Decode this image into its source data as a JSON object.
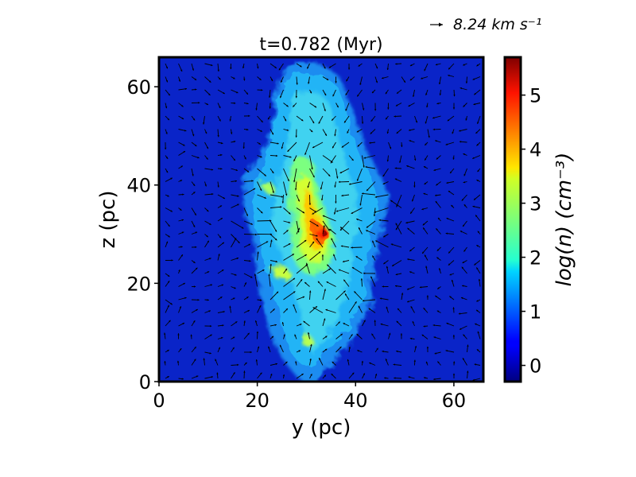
{
  "chart_data": {
    "type": "heatmap",
    "title": "t=0.782 (Myr)",
    "xlabel": "y (pc)",
    "ylabel": "z (pc)",
    "xlim": [
      0,
      66
    ],
    "ylim": [
      0,
      66
    ],
    "xticks": [
      0,
      20,
      40,
      60
    ],
    "yticks": [
      0,
      20,
      40,
      60
    ],
    "xtick_labels": [
      "0",
      "20",
      "40",
      "60"
    ],
    "ytick_labels": [
      "0",
      "20",
      "40",
      "60"
    ],
    "colormap": "jet",
    "colorbar": {
      "label": "log(n) (cm^-3)",
      "label_display": "log(n) (cm⁻³)",
      "range": [
        -0.3,
        5.7
      ],
      "ticks": [
        0,
        1,
        2,
        3,
        4,
        5
      ],
      "tick_labels": [
        "0",
        "1",
        "2",
        "3",
        "4",
        "5"
      ]
    },
    "quiver": {
      "description": "velocity field vectors overlaid on density map",
      "reference_label": "8.24 km s^-1",
      "reference_display": "8.24 km s⁻¹"
    },
    "features": {
      "cloud_center_pc": [
        33,
        31
      ],
      "peak_logn": 5.5,
      "background_logn": 0.0
    },
    "grid": false,
    "legend": "none"
  },
  "colors": {
    "frame": "#000000",
    "background_field": "#0a24c8"
  }
}
